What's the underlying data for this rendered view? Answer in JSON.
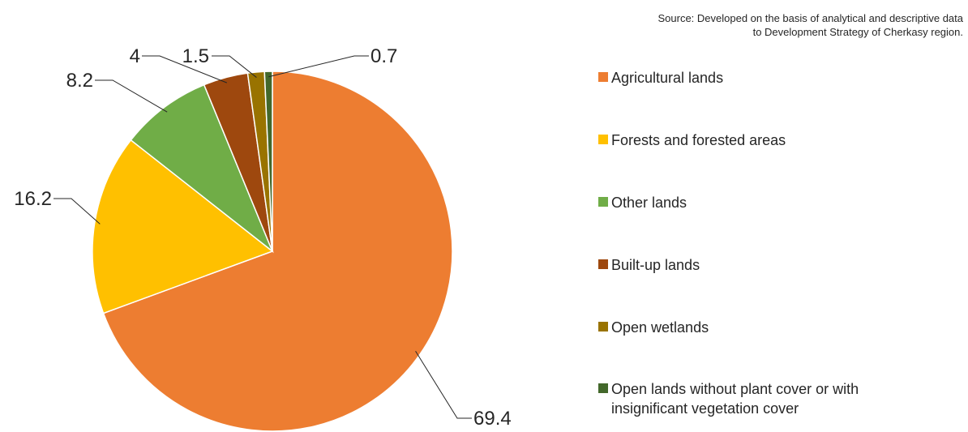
{
  "source_note": "Source: Developed on the basis of analytical and descriptive data\nto Development Strategy of Cherkasy region.",
  "chart_data": {
    "type": "pie",
    "title": "",
    "categories": [
      "Agricultural lands",
      "Forests and forested areas",
      "Other lands",
      "Built-up lands",
      "Open wetlands",
      "Open lands without plant cover or with insignificant vegetation cover"
    ],
    "values": [
      69.4,
      16.2,
      8.2,
      4,
      1.5,
      0.7
    ],
    "data_labels": [
      "69.4",
      "16.2",
      "8.2",
      "4",
      "1.5",
      "0.7"
    ],
    "colors": [
      "#ed7d31",
      "#ffc000",
      "#70ad47",
      "#9e480e",
      "#997300",
      "#43682b"
    ],
    "legend_position": "right",
    "start_angle_degrees": 0,
    "direction": "clockwise"
  }
}
